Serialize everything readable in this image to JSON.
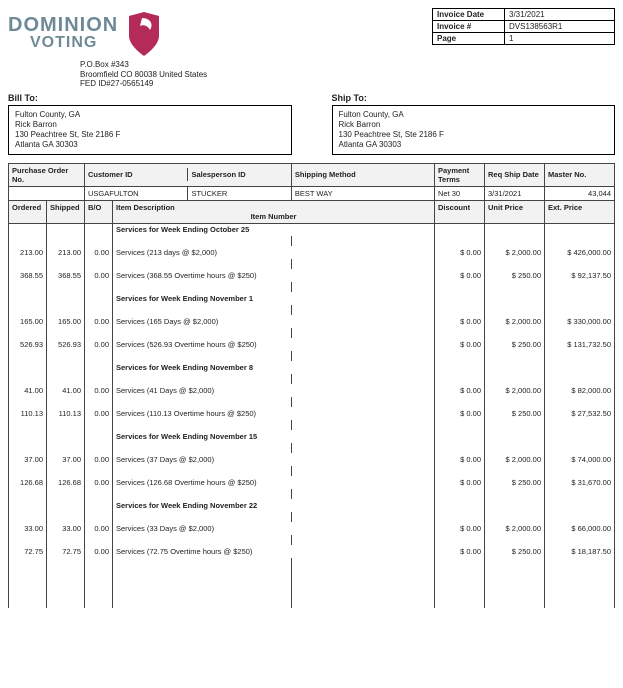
{
  "company": {
    "name_line1": "DOMINION",
    "name_line2": "VOTING",
    "brand_text_color": "#6f8a96",
    "mark_color": "#b42a58",
    "po_line1": "P.O.Box #343",
    "po_line2": "Broomfield CO 80038 United States",
    "po_line3": "FED ID#27-0565149"
  },
  "invoice_meta": {
    "rows": [
      {
        "label": "Invoice Date",
        "value": "3/31/2021"
      },
      {
        "label": "Invoice #",
        "value": "DVS138563R1"
      },
      {
        "label": "Page",
        "value": "1"
      }
    ]
  },
  "bill_to": {
    "heading": "Bill To:",
    "lines": [
      "Fulton County, GA",
      "Rick Barron",
      "130 Peachtree St, Ste 2186 F",
      "Atlanta GA   30303"
    ]
  },
  "ship_to": {
    "heading": "Ship To:",
    "lines": [
      "Fulton County, GA",
      "Rick Barron",
      "130 Peachtree St, Ste 2186 F",
      "Atlanta GA   30303"
    ]
  },
  "headers": {
    "purchase_order_no": "Purchase Order No.",
    "customer_id": "Customer ID",
    "customer_id_val": "USGAFULTON",
    "salesperson_id": "Salesperson ID",
    "salesperson_id_val": "STUCKER",
    "shipping_method": "Shipping Method",
    "shipping_method_val": "BEST WAY",
    "payment_terms": "Payment Terms",
    "payment_terms_val": "Net 30",
    "req_ship_date": "Req Ship Date",
    "req_ship_date_val": "3/31/2021",
    "master_no": "Master No.",
    "master_no_val": "43,044",
    "ordered": "Ordered",
    "shipped": "Shipped",
    "bo": "B/O",
    "item_description": "Item Description",
    "item_number": "Item Number",
    "discount": "Discount",
    "unit_price": "Unit Price",
    "ext_price": "Ext. Price"
  },
  "sections": [
    {
      "title": "Services for Week Ending October 25",
      "rows": [
        {
          "ordered": "213.00",
          "shipped": "213.00",
          "bo": "0.00",
          "desc": "Services (213 days @ $2,000)",
          "discount": "$ 0.00",
          "unit": "$ 2,000.00",
          "ext": "$ 426,000.00"
        },
        {
          "ordered": "368.55",
          "shipped": "368.55",
          "bo": "0.00",
          "desc": "Services (368.55 Overtime hours @ $250)",
          "discount": "$ 0.00",
          "unit": "$ 250.00",
          "ext": "$ 92,137.50"
        }
      ]
    },
    {
      "title": "Services for Week Ending November 1",
      "rows": [
        {
          "ordered": "165.00",
          "shipped": "165.00",
          "bo": "0.00",
          "desc": "Services (165 Days @ $2,000)",
          "discount": "$ 0.00",
          "unit": "$ 2,000.00",
          "ext": "$ 330,000.00"
        },
        {
          "ordered": "526.93",
          "shipped": "526.93",
          "bo": "0.00",
          "desc": "Services (526.93 Overtime hours @ $250)",
          "discount": "$ 0.00",
          "unit": "$ 250.00",
          "ext": "$ 131,732.50"
        }
      ]
    },
    {
      "title": "Services for Week Ending November 8",
      "rows": [
        {
          "ordered": "41.00",
          "shipped": "41.00",
          "bo": "0.00",
          "desc": "Services (41 Days @ $2,000)",
          "discount": "$ 0.00",
          "unit": "$ 2,000.00",
          "ext": "$ 82,000.00"
        },
        {
          "ordered": "110.13",
          "shipped": "110.13",
          "bo": "0.00",
          "desc": "Services (110.13 Overtime hours @ $250)",
          "discount": "$ 0.00",
          "unit": "$ 250.00",
          "ext": "$ 27,532.50"
        }
      ]
    },
    {
      "title": "Services for Week Ending November 15",
      "rows": [
        {
          "ordered": "37.00",
          "shipped": "37.00",
          "bo": "0.00",
          "desc": "Services (37 Days @ $2,000)",
          "discount": "$ 0.00",
          "unit": "$ 2,000.00",
          "ext": "$ 74,000.00"
        },
        {
          "ordered": "126.68",
          "shipped": "126.68",
          "bo": "0.00",
          "desc": "Services (126.68 Overtime hours @ $250)",
          "discount": "$ 0.00",
          "unit": "$ 250.00",
          "ext": "$ 31,670.00"
        }
      ]
    },
    {
      "title": "Services for Week Ending November 22",
      "rows": [
        {
          "ordered": "33.00",
          "shipped": "33.00",
          "bo": "0.00",
          "desc": "Services (33 Days @ $2,000)",
          "discount": "$ 0.00",
          "unit": "$ 2,000.00",
          "ext": "$ 66,000.00"
        },
        {
          "ordered": "72.75",
          "shipped": "72.75",
          "bo": "0.00",
          "desc": "Services (72.75 Overtime hours @ $250)",
          "discount": "$ 0.00",
          "unit": "$ 250.00",
          "ext": "$ 18,187.50"
        }
      ]
    }
  ]
}
